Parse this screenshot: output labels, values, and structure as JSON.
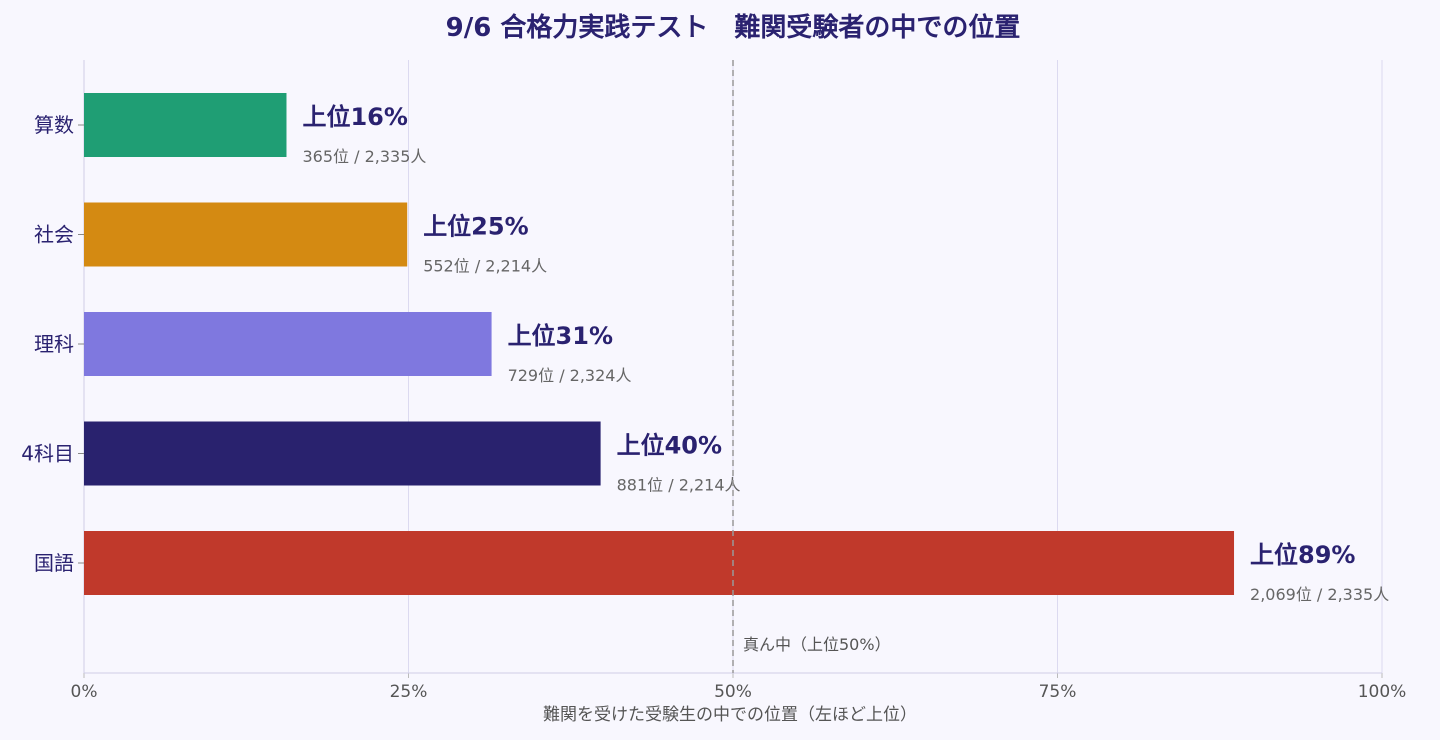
{
  "chart_data": {
    "type": "bar",
    "orientation": "horizontal",
    "title": "9/6 合格力実践テスト　難関受験者の中での位置",
    "xlabel": "難関を受けた受験生の中での位置（左ほど上位）",
    "ylabel": "",
    "xlim": [
      0,
      100
    ],
    "x_ticks": [
      "0%",
      "25%",
      "50%",
      "75%",
      "100%"
    ],
    "grid": true,
    "categories": [
      "算数",
      "社会",
      "理科",
      "4科目",
      "国語"
    ],
    "values": [
      15.6,
      24.9,
      31.4,
      39.8,
      88.6
    ],
    "colors": [
      "#1f9e74",
      "#d48a12",
      "#7f78df",
      "#29226e",
      "#c0392b"
    ],
    "rank_labels": [
      "上位16%",
      "上位25%",
      "上位31%",
      "上位40%",
      "上位89%"
    ],
    "detail_labels": [
      "365位 / 2,335人",
      "552位 / 2,214人",
      "729位 / 2,324人",
      "881位 / 2,214人",
      "2,069位 / 2,335人"
    ],
    "reference_line": {
      "value": 50,
      "label": "真ん中（上位50%）"
    }
  }
}
